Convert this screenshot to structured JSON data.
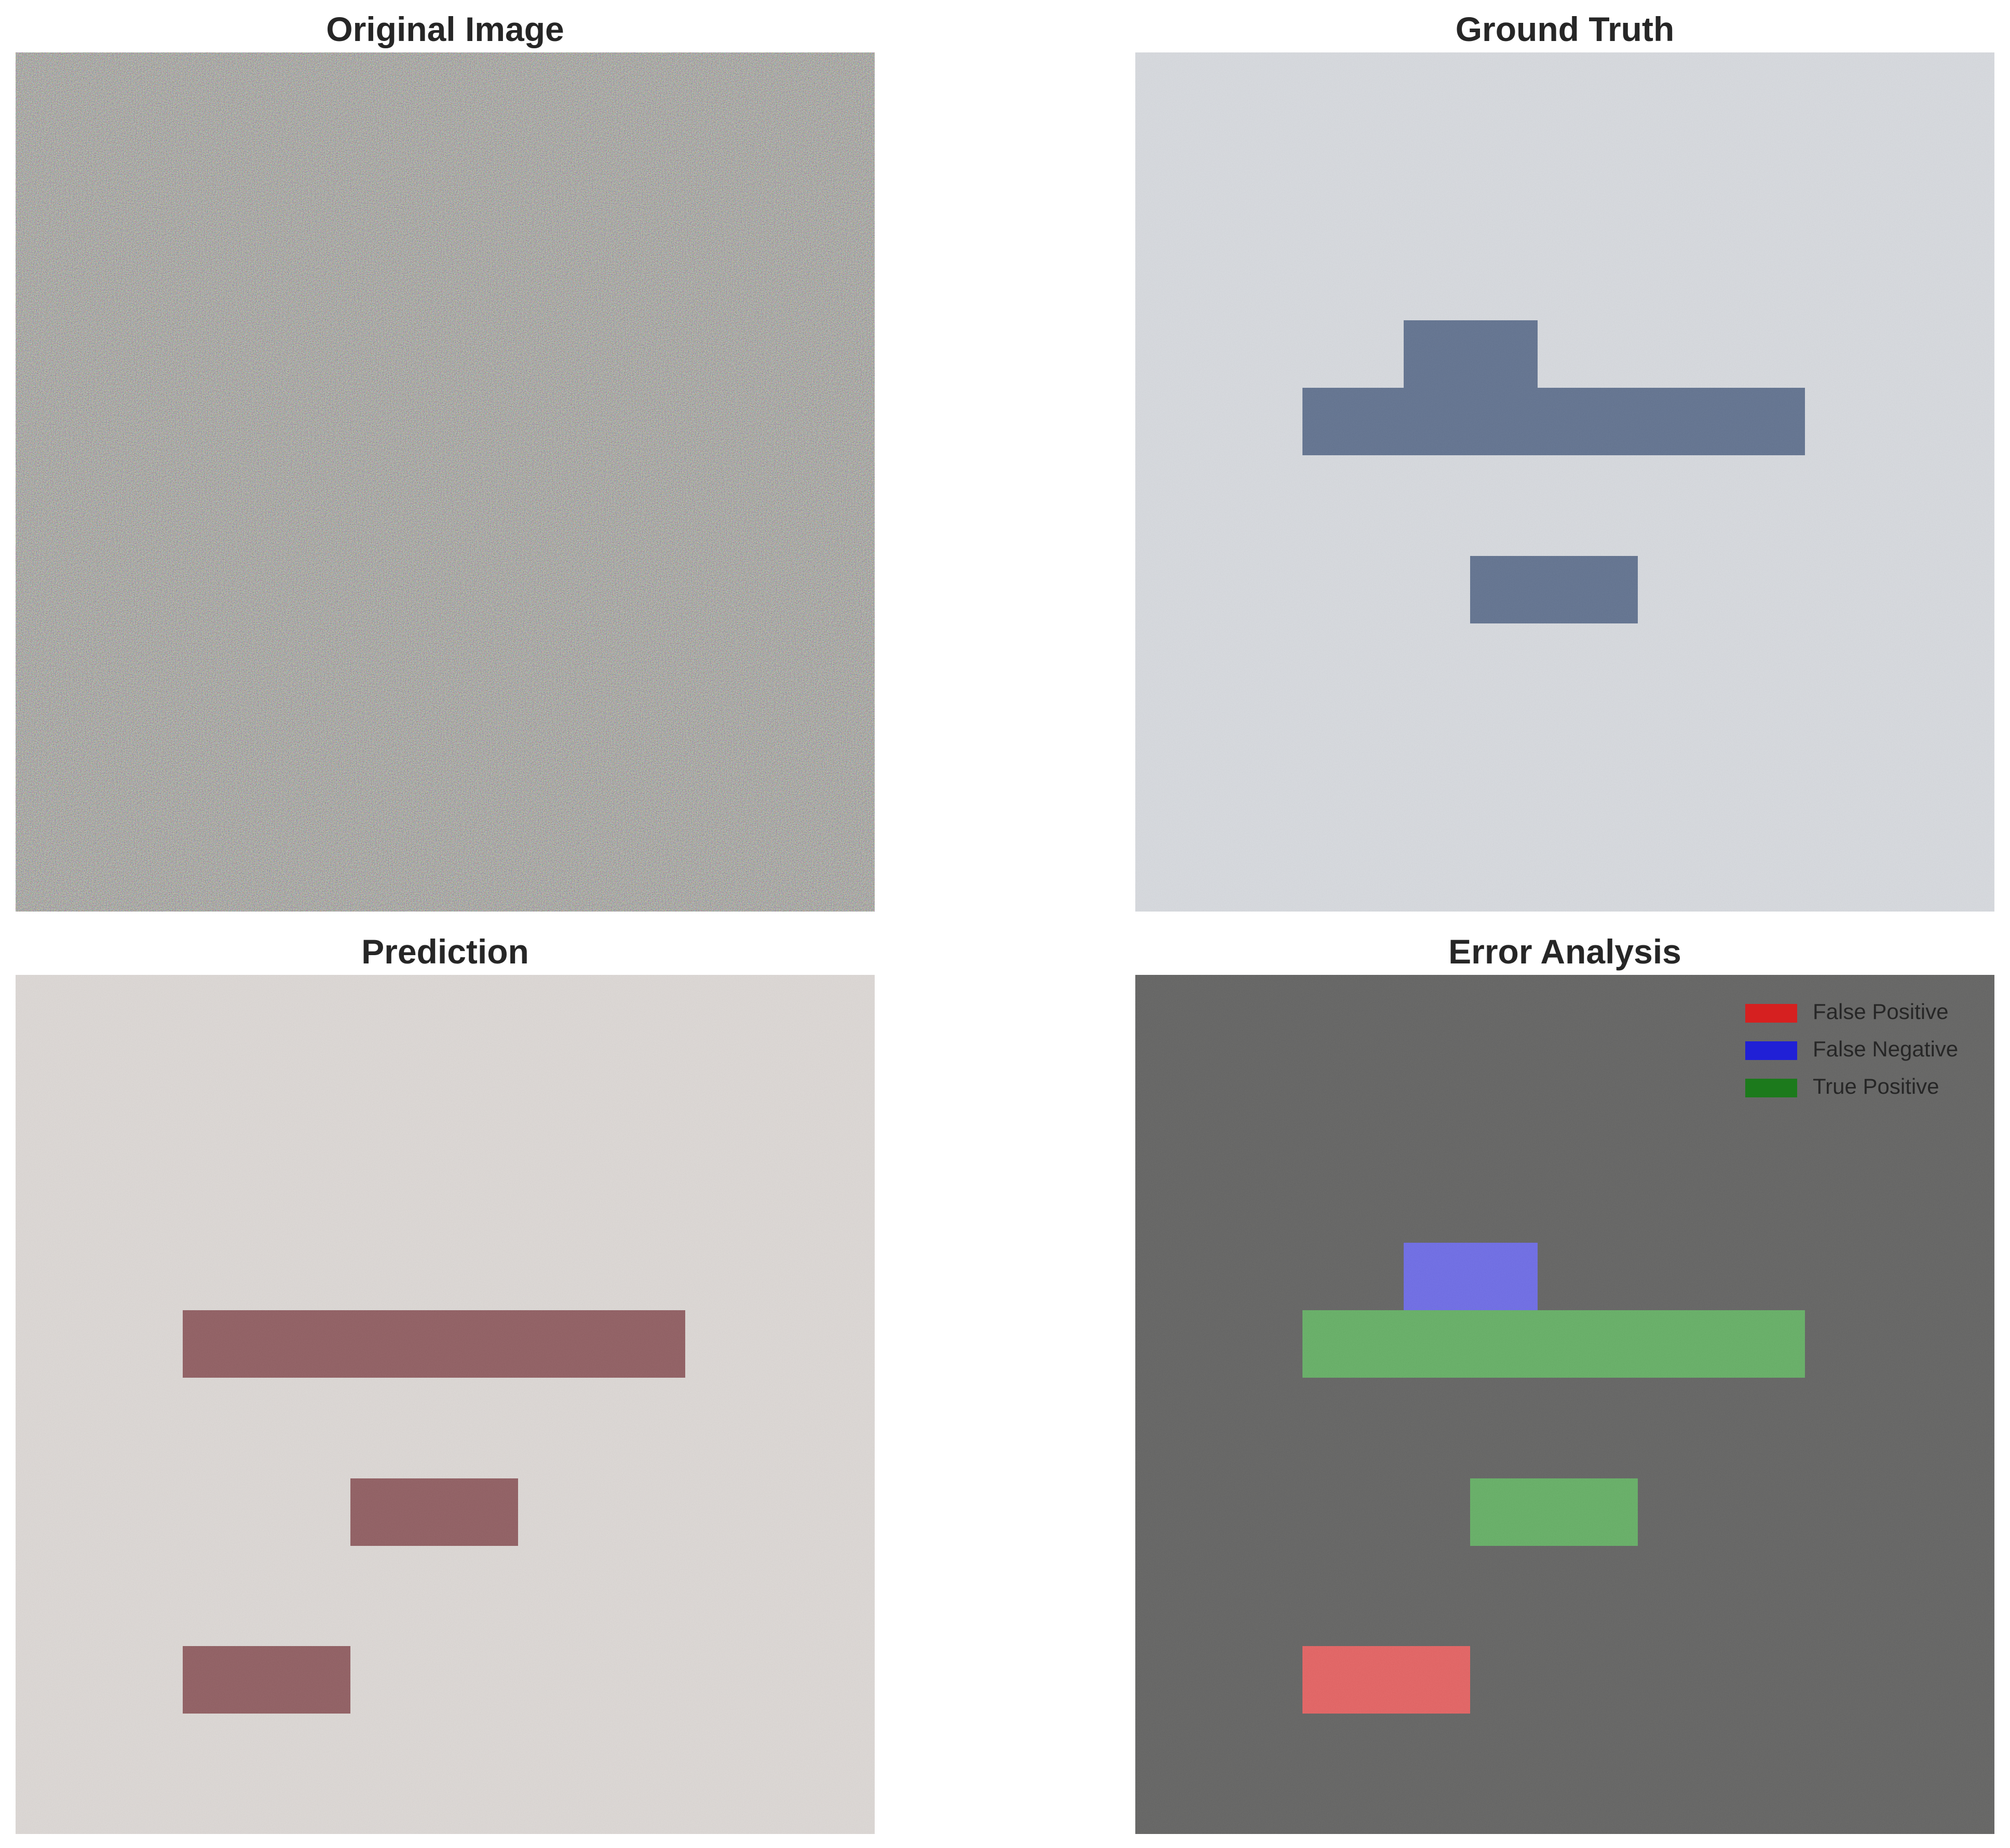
{
  "panels": [
    {
      "key": "original",
      "title": "Original Image",
      "background": "#8d8c84",
      "rects": []
    },
    {
      "key": "ground_truth",
      "title": "Ground Truth",
      "background": "#d8dbe0",
      "rects": [
        {
          "role": "gt-block-top",
          "color": "#5b6d8c"
        },
        {
          "role": "gt-bar",
          "color": "#5b6d8c"
        },
        {
          "role": "gt-small",
          "color": "#5b6d8c"
        }
      ]
    },
    {
      "key": "prediction",
      "title": "Prediction",
      "background": "#ded9d6",
      "rects": [
        {
          "role": "pred-bar",
          "color": "#8d575b"
        },
        {
          "role": "pred-mid",
          "color": "#8d575b"
        },
        {
          "role": "pred-low",
          "color": "#8d575b"
        }
      ]
    },
    {
      "key": "error",
      "title": "Error Analysis",
      "background": "#5d5d5c",
      "rects": [
        {
          "role": "fn",
          "color": "#6866e8"
        },
        {
          "role": "tp-bar",
          "color": "#5fae5f"
        },
        {
          "role": "tp-small",
          "color": "#5fae5f"
        },
        {
          "role": "fp",
          "color": "#e65c5c"
        }
      ]
    }
  ],
  "legend": [
    {
      "label": "False Positive",
      "color": "#d62020"
    },
    {
      "label": "False Negative",
      "color": "#2020d6"
    },
    {
      "label": "True Positive",
      "color": "#1c7a1c"
    }
  ]
}
